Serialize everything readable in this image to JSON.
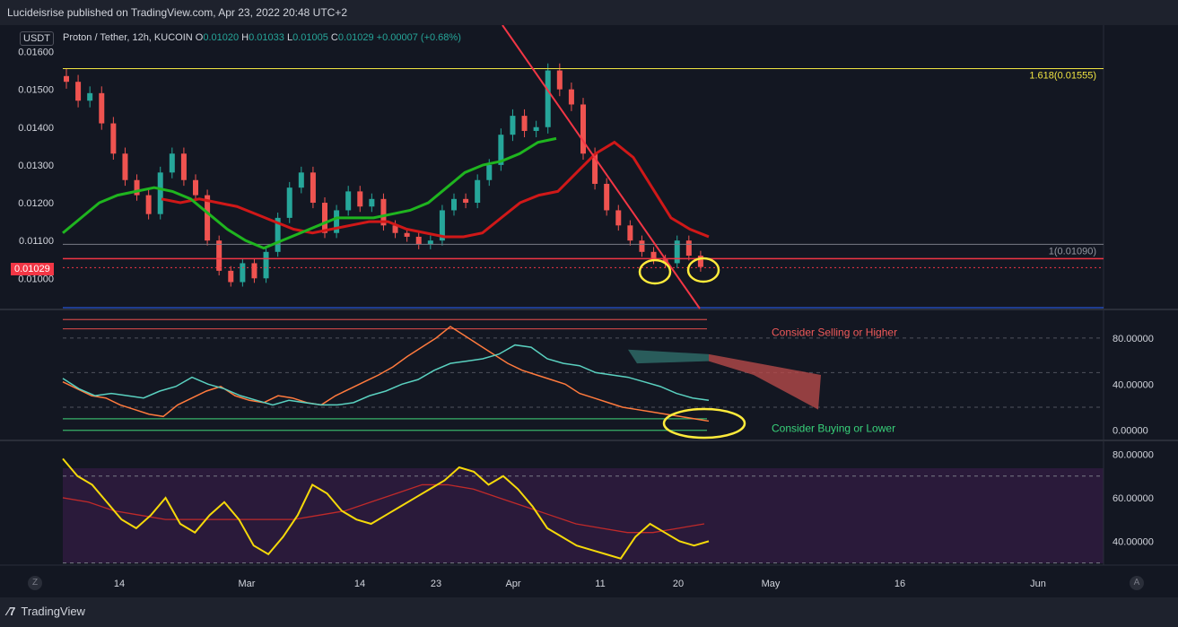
{
  "header": {
    "published": "Lucideisrise published on TradingView.com, Apr 23, 2022 20:48 UTC+2"
  },
  "footer": {
    "brand": "TradingView",
    "left_button": "Z",
    "right_button": "A"
  },
  "legend": {
    "symbol": "Proton / Tether, 12h, KUCOIN",
    "o_label": "O",
    "o": "0.01020",
    "h_label": "H",
    "h": "0.01033",
    "l_label": "L",
    "l": "0.01005",
    "c_label": "C",
    "c": "0.01029",
    "chg": "+0.00007 (+0.68%)",
    "currency": "USDT",
    "last_price": "0.01029"
  },
  "colors": {
    "up": "#26a69a",
    "down": "#ef5350",
    "bg": "#131722",
    "fib": "#f0e442",
    "trend": "#f23645",
    "ma_green": "#1fb51f",
    "ma_red": "#d01818",
    "rsi": "#f5d90a",
    "annot": "#ffeb3b"
  },
  "chart_data": [
    {
      "type": "candlestick",
      "panel": "price",
      "yticks": [
        "0.01600",
        "0.01500",
        "0.01400",
        "0.01300",
        "0.01200",
        "0.01100",
        "0.01000"
      ],
      "ylim": [
        0.0092,
        0.0167
      ],
      "xticks": [
        "14",
        "Mar",
        "14",
        "23",
        "Apr",
        "11",
        "20",
        "May",
        "16",
        "Jun"
      ],
      "fib_levels": [
        {
          "label": "1.618(0.01555)",
          "value": 0.01555
        },
        {
          "label": "1(0.01090)",
          "value": 0.0109
        }
      ],
      "support": 0.01052,
      "close_series": [
        0.0152,
        0.0147,
        0.0149,
        0.0141,
        0.0133,
        0.0126,
        0.0122,
        0.0117,
        0.0128,
        0.0133,
        0.0126,
        0.0122,
        0.011,
        0.0102,
        0.0099,
        0.0104,
        0.01,
        0.0107,
        0.0116,
        0.0124,
        0.0128,
        0.012,
        0.0112,
        0.0118,
        0.0123,
        0.0119,
        0.0121,
        0.0114,
        0.0112,
        0.0111,
        0.0109,
        0.011,
        0.0118,
        0.0121,
        0.012,
        0.0126,
        0.013,
        0.0138,
        0.0143,
        0.0139,
        0.014,
        0.0155,
        0.015,
        0.0146,
        0.0133,
        0.0125,
        0.0118,
        0.0114,
        0.011,
        0.0107,
        0.0105,
        0.0104,
        0.011,
        0.0106,
        0.0103
      ],
      "ma_green": [
        0.0112,
        0.0116,
        0.012,
        0.0122,
        0.0123,
        0.0124,
        0.0123,
        0.0121,
        0.0117,
        0.0113,
        0.011,
        0.0108,
        0.011,
        0.0112,
        0.0114,
        0.0116,
        0.0116,
        0.0116,
        0.0117,
        0.0118,
        0.012,
        0.0124,
        0.0128,
        0.013,
        0.0131,
        0.0133,
        0.0136,
        0.0137
      ],
      "ma_red": [
        0.0121,
        0.012,
        0.0121,
        0.012,
        0.0119,
        0.0117,
        0.0115,
        0.0113,
        0.0112,
        0.0113,
        0.0114,
        0.0115,
        0.0115,
        0.0113,
        0.0112,
        0.0111,
        0.0111,
        0.0112,
        0.0116,
        0.012,
        0.0122,
        0.0123,
        0.0128,
        0.0133,
        0.0136,
        0.0132,
        0.0124,
        0.0116,
        0.0113,
        0.0111
      ]
    },
    {
      "type": "line",
      "panel": "oscillator",
      "yticks": [
        "80.00000",
        "40.00000",
        "0.00000"
      ],
      "ylim": [
        -8,
        104
      ],
      "annotations": [
        "Consider Selling or Higher",
        "Consider Buying or Lower"
      ],
      "series": [
        {
          "values": [
            42,
            36,
            30,
            28,
            22,
            18,
            14,
            12,
            22,
            28,
            34,
            38,
            30,
            26,
            24,
            30,
            28,
            24,
            22,
            30,
            36,
            42,
            48,
            55,
            64,
            72,
            80,
            90,
            82,
            74,
            66,
            58,
            52,
            48,
            44,
            40,
            32,
            28,
            24,
            20,
            18,
            16,
            14,
            12,
            10,
            8
          ]
        },
        {
          "values": [
            45,
            36,
            30,
            32,
            30,
            28,
            34,
            38,
            46,
            40,
            36,
            30,
            26,
            22,
            26,
            24,
            22,
            22,
            24,
            30,
            34,
            40,
            44,
            52,
            58,
            60,
            62,
            66,
            74,
            72,
            62,
            58,
            56,
            50,
            48,
            46,
            42,
            38,
            32,
            28,
            26
          ]
        }
      ]
    },
    {
      "type": "line",
      "panel": "rsi",
      "yticks": [
        "80.00000",
        "60.00000",
        "40.00000"
      ],
      "ylim": [
        29,
        86
      ],
      "series": [
        {
          "values": [
            78,
            70,
            66,
            58,
            50,
            46,
            52,
            60,
            48,
            44,
            52,
            58,
            50,
            38,
            34,
            42,
            52,
            66,
            62,
            54,
            50,
            48,
            52,
            56,
            60,
            64,
            68,
            74,
            72,
            66,
            70,
            64,
            56,
            46,
            42,
            38,
            36,
            34,
            32,
            42,
            48,
            44,
            40,
            38,
            40
          ]
        },
        {
          "values": [
            60,
            58,
            54,
            52,
            50,
            50,
            50,
            50,
            50,
            50,
            52,
            54,
            58,
            62,
            66,
            66,
            64,
            60,
            56,
            52,
            48,
            46,
            44,
            44,
            46,
            48
          ]
        }
      ]
    }
  ]
}
